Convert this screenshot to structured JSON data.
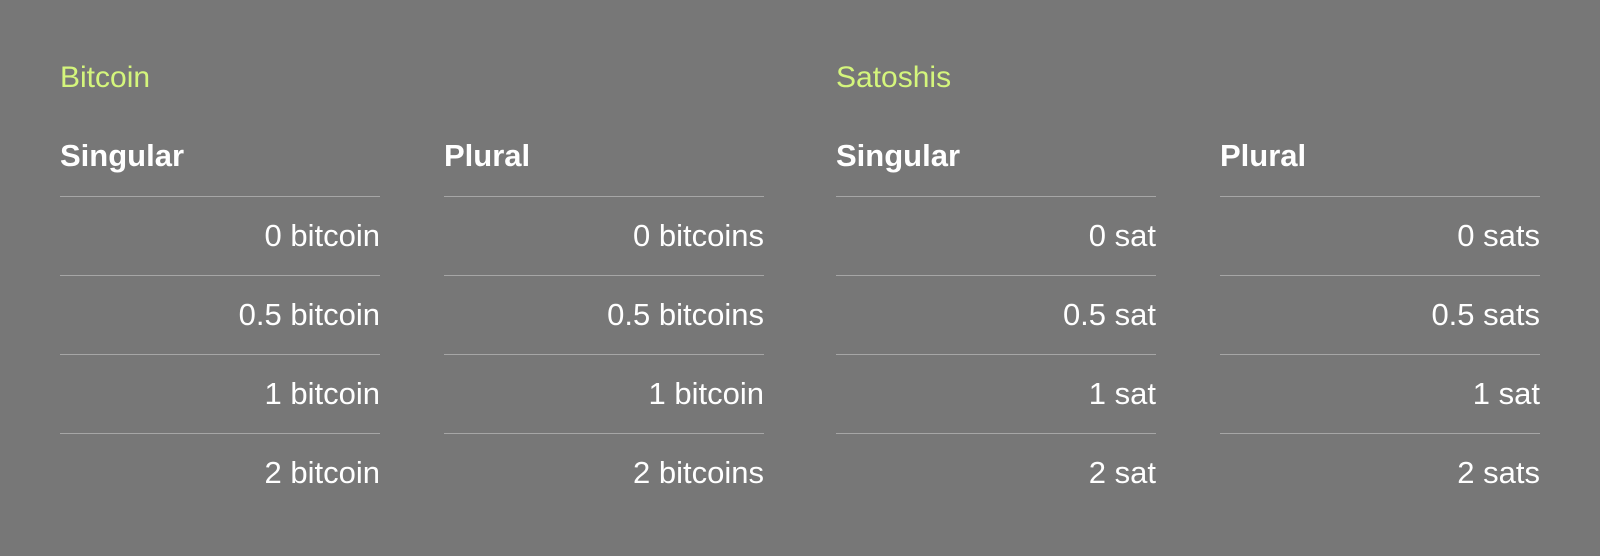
{
  "colors": {
    "background": "#777777",
    "accent": "#d4f57c",
    "text": "#ffffff",
    "divider": "#a6a6a6"
  },
  "groups": [
    {
      "title": "Bitcoin",
      "columns": [
        {
          "header": "Singular",
          "values": [
            "0 bitcoin",
            "0.5 bitcoin",
            "1 bitcoin",
            "2 bitcoin"
          ]
        },
        {
          "header": "Plural",
          "values": [
            "0 bitcoins",
            "0.5 bitcoins",
            "1 bitcoin",
            "2 bitcoins"
          ]
        }
      ]
    },
    {
      "title": "Satoshis",
      "columns": [
        {
          "header": "Singular",
          "values": [
            "0 sat",
            "0.5 sat",
            "1 sat",
            "2 sat"
          ]
        },
        {
          "header": "Plural",
          "values": [
            "0 sats",
            "0.5 sats",
            "1 sat",
            "2 sats"
          ]
        }
      ]
    }
  ]
}
